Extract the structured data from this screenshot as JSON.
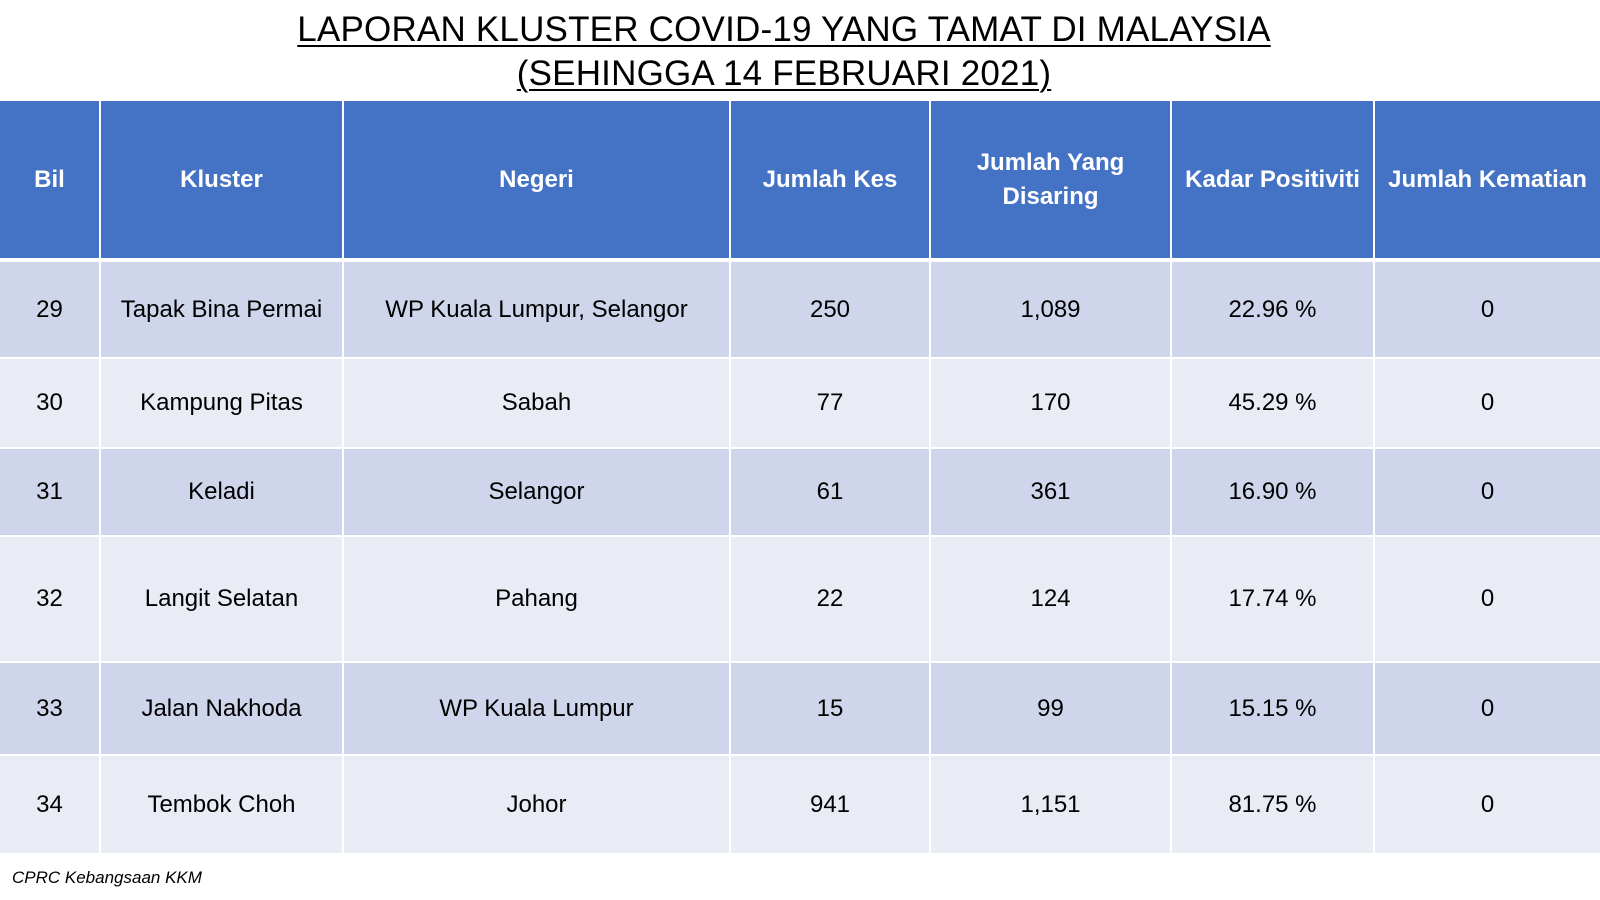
{
  "title": {
    "line1": "LAPORAN KLUSTER COVID-19 YANG TAMAT DI MALAYSIA",
    "line2": "(SEHINGGA  14 FEBRUARI 2021)"
  },
  "table": {
    "headers": {
      "bil": "Bil",
      "kluster": "Kluster",
      "negeri": "Negeri",
      "jumlah_kes": "Jumlah Kes",
      "jumlah_disaring": "Jumlah Yang Disaring",
      "kadar_positiviti": "Kadar Positiviti",
      "jumlah_kematian": "Jumlah Kematian"
    },
    "rows": [
      {
        "bil": "29",
        "kluster": "Tapak Bina Permai",
        "negeri": "WP Kuala Lumpur, Selangor",
        "jumlah_kes": "250",
        "jumlah_disaring": "1,089",
        "kadar_positiviti": "22.96 %",
        "jumlah_kematian": "0"
      },
      {
        "bil": "30",
        "kluster": "Kampung Pitas",
        "negeri": "Sabah",
        "jumlah_kes": "77",
        "jumlah_disaring": "170",
        "kadar_positiviti": "45.29 %",
        "jumlah_kematian": "0"
      },
      {
        "bil": "31",
        "kluster": "Keladi",
        "negeri": "Selangor",
        "jumlah_kes": "61",
        "jumlah_disaring": "361",
        "kadar_positiviti": "16.90 %",
        "jumlah_kematian": "0"
      },
      {
        "bil": "32",
        "kluster": "Langit Selatan",
        "negeri": "Pahang",
        "jumlah_kes": "22",
        "jumlah_disaring": "124",
        "kadar_positiviti": "17.74 %",
        "jumlah_kematian": "0"
      },
      {
        "bil": "33",
        "kluster": "Jalan Nakhoda",
        "negeri": "WP Kuala Lumpur",
        "jumlah_kes": "15",
        "jumlah_disaring": "99",
        "kadar_positiviti": "15.15 %",
        "jumlah_kematian": "0"
      },
      {
        "bil": "34",
        "kluster": "Tembok Choh",
        "negeri": "Johor",
        "jumlah_kes": "941",
        "jumlah_disaring": "1,151",
        "kadar_positiviti": "81.75 %",
        "jumlah_kematian": "0"
      }
    ]
  },
  "footnote": "CPRC Kebangsaan KKM",
  "colors": {
    "header_bg": "#4472c4",
    "row_odd_bg": "#cfd5ea",
    "row_even_bg": "#e9ebf5"
  }
}
